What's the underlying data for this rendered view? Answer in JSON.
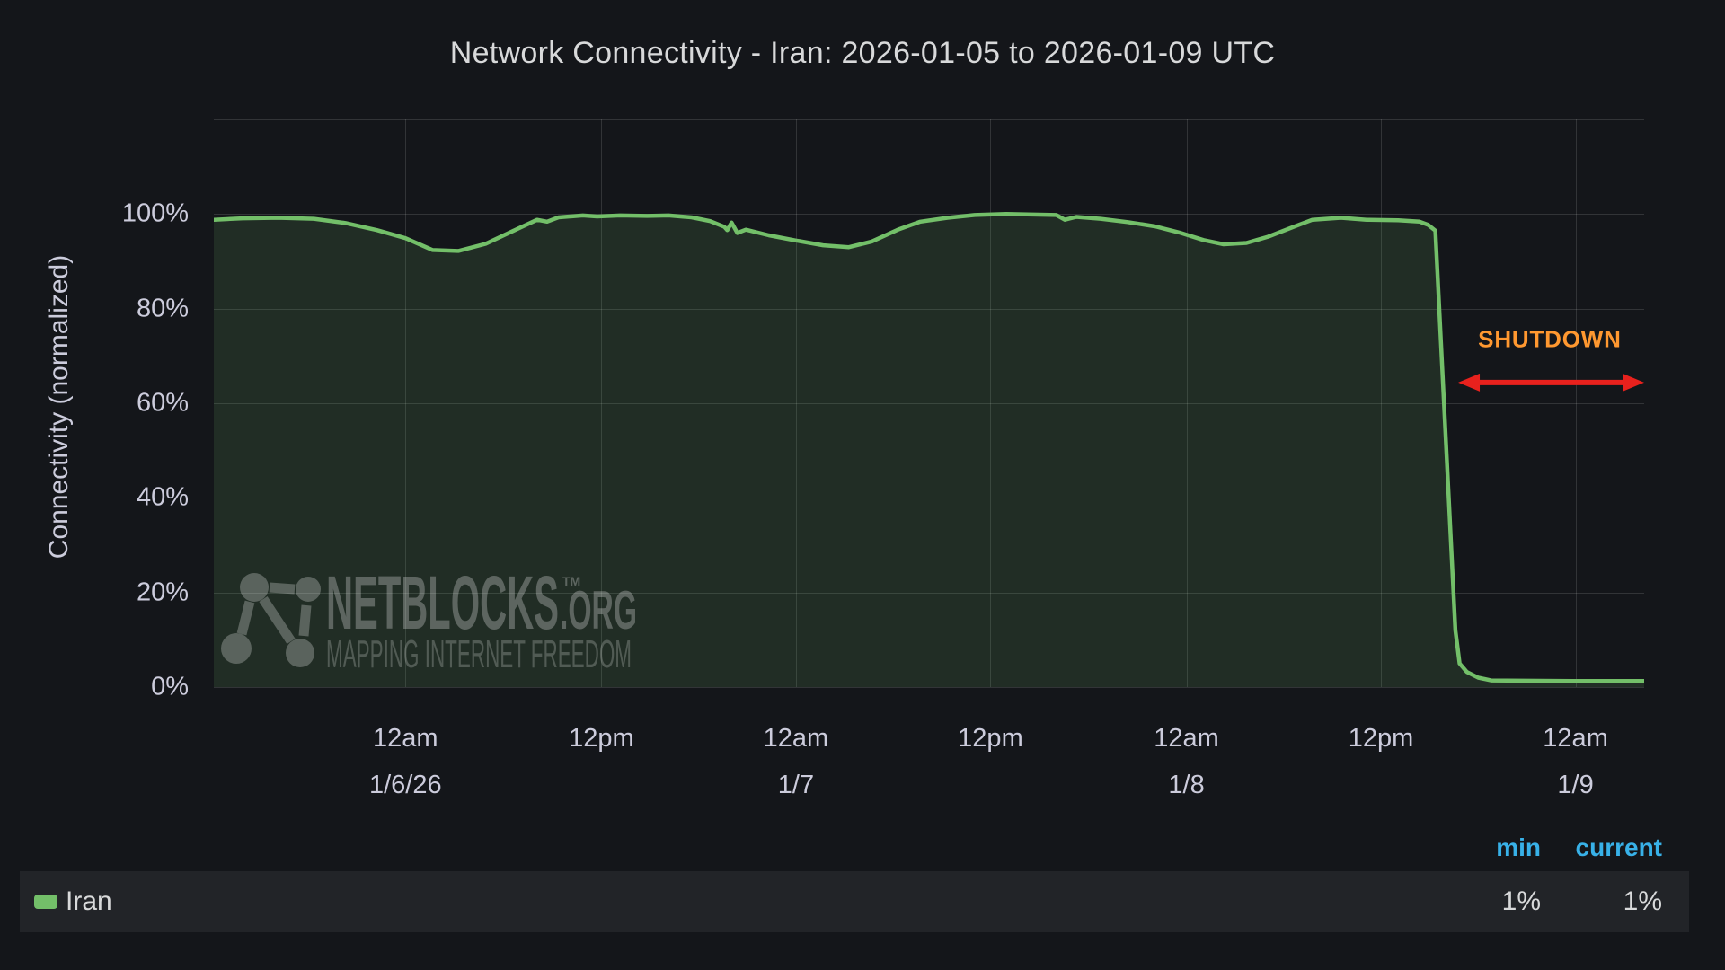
{
  "page": {
    "title": "Network Connectivity - Iran: 2026-01-05 to 2026-01-09 UTC"
  },
  "colors": {
    "background": "#14161a",
    "row_bg": "#222428",
    "text": "#ccccdc",
    "title": "#d8d9da",
    "accent_blue": "#38b1e8",
    "shutdown_orange": "#ff9830",
    "arrow_red": "#e8211d",
    "line_green": "#73bf69"
  },
  "chart_data": {
    "type": "area",
    "title": "Network Connectivity - Iran: 2026-01-05 to 2026-01-09 UTC",
    "xlabel": "",
    "ylabel": "Connectivity (normalized)",
    "ylim": [
      0,
      120
    ],
    "grid": true,
    "y_grid_pcts": [
      0,
      20,
      40,
      60,
      80,
      100,
      120
    ],
    "y_ticks": [
      {
        "pct": 0,
        "label": "0%"
      },
      {
        "pct": 20,
        "label": "20%"
      },
      {
        "pct": 40,
        "label": "40%"
      },
      {
        "pct": 60,
        "label": "60%"
      },
      {
        "pct": 80,
        "label": "80%"
      },
      {
        "pct": 100,
        "label": "100%"
      }
    ],
    "x_ticks": [
      {
        "frac": 0.134,
        "time": "12am",
        "date": "1/6/26"
      },
      {
        "frac": 0.271,
        "time": "12pm",
        "date": ""
      },
      {
        "frac": 0.407,
        "time": "12am",
        "date": "1/7"
      },
      {
        "frac": 0.543,
        "time": "12pm",
        "date": ""
      },
      {
        "frac": 0.68,
        "time": "12am",
        "date": "1/8"
      },
      {
        "frac": 0.816,
        "time": "12pm",
        "date": ""
      },
      {
        "frac": 0.952,
        "time": "12am",
        "date": "1/9"
      }
    ],
    "series": [
      {
        "name": "Iran",
        "color": "#73bf69",
        "fill_opacity": 0.14,
        "points_format": "[fraction_of_x_axis, connectivity_percent]",
        "points": [
          [
            0.0,
            98.8
          ],
          [
            0.02,
            99.1
          ],
          [
            0.045,
            99.2
          ],
          [
            0.07,
            99.0
          ],
          [
            0.092,
            98.1
          ],
          [
            0.114,
            96.6
          ],
          [
            0.134,
            94.9
          ],
          [
            0.153,
            92.4
          ],
          [
            0.171,
            92.2
          ],
          [
            0.19,
            93.7
          ],
          [
            0.209,
            96.4
          ],
          [
            0.226,
            98.8
          ],
          [
            0.233,
            98.4
          ],
          [
            0.241,
            99.3
          ],
          [
            0.258,
            99.7
          ],
          [
            0.268,
            99.5
          ],
          [
            0.284,
            99.7
          ],
          [
            0.303,
            99.6
          ],
          [
            0.318,
            99.7
          ],
          [
            0.334,
            99.3
          ],
          [
            0.347,
            98.5
          ],
          [
            0.357,
            97.3
          ],
          [
            0.359,
            96.6
          ],
          [
            0.362,
            98.2
          ],
          [
            0.366,
            96.0
          ],
          [
            0.372,
            96.7
          ],
          [
            0.388,
            95.5
          ],
          [
            0.407,
            94.4
          ],
          [
            0.426,
            93.4
          ],
          [
            0.444,
            93.0
          ],
          [
            0.46,
            94.2
          ],
          [
            0.479,
            96.8
          ],
          [
            0.494,
            98.4
          ],
          [
            0.513,
            99.2
          ],
          [
            0.532,
            99.8
          ],
          [
            0.554,
            100.0
          ],
          [
            0.573,
            99.9
          ],
          [
            0.589,
            99.8
          ],
          [
            0.595,
            98.8
          ],
          [
            0.603,
            99.4
          ],
          [
            0.62,
            99.0
          ],
          [
            0.639,
            98.3
          ],
          [
            0.658,
            97.4
          ],
          [
            0.675,
            96.1
          ],
          [
            0.692,
            94.5
          ],
          [
            0.706,
            93.6
          ],
          [
            0.722,
            93.9
          ],
          [
            0.737,
            95.2
          ],
          [
            0.754,
            97.2
          ],
          [
            0.768,
            98.8
          ],
          [
            0.788,
            99.2
          ],
          [
            0.806,
            98.8
          ],
          [
            0.828,
            98.7
          ],
          [
            0.843,
            98.4
          ],
          [
            0.849,
            97.7
          ],
          [
            0.854,
            96.5
          ],
          [
            0.868,
            12.0
          ],
          [
            0.871,
            5.0
          ],
          [
            0.876,
            3.2
          ],
          [
            0.884,
            2.0
          ],
          [
            0.893,
            1.4
          ],
          [
            0.95,
            1.3
          ],
          [
            1.0,
            1.3
          ]
        ]
      }
    ],
    "annotation": {
      "label": "SHUTDOWN",
      "label_color": "#ff9830",
      "arrow_color": "#e8211d",
      "x1_frac": 0.87,
      "x2_frac": 1.0,
      "arrow_pct": 64.4,
      "label_center_frac": 0.934,
      "label_pct": 73.5
    },
    "legend_position": "bottom"
  },
  "watermark": {
    "brand": "NETBLOCKS",
    "tm": "TM",
    "suffix": ".ORG",
    "tagline": "MAPPING INTERNET FREEDOM"
  },
  "legend": {
    "headers": {
      "min": "min",
      "current": "current"
    },
    "rows": [
      {
        "series": "Iran",
        "swatch_color": "#73bf69",
        "min": "1%",
        "current": "1%"
      }
    ]
  }
}
